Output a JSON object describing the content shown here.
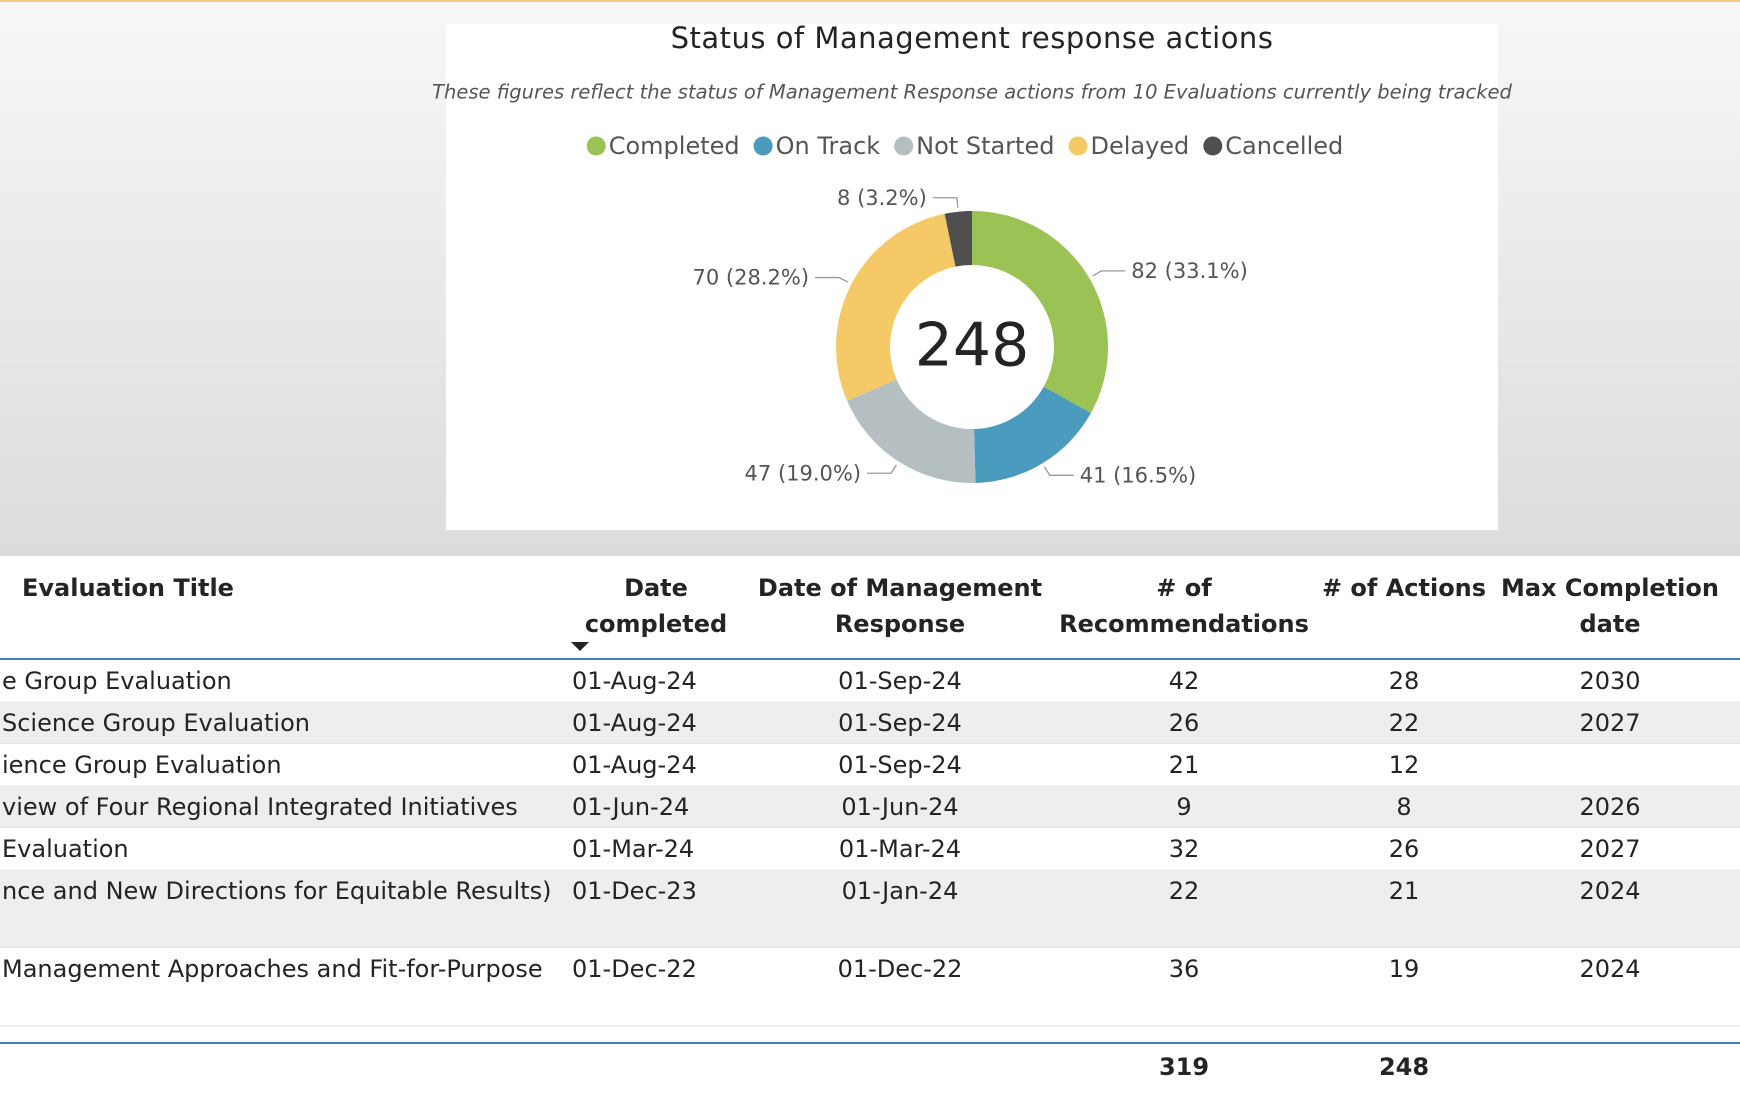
{
  "chart_data": {
    "type": "donut",
    "title": "Status of Management response actions",
    "subtitle": "These figures reflect the status of Management Response actions from 10 Evaluations currently being tracked",
    "categories": [
      "Completed",
      "On Track",
      "Not Started",
      "Delayed",
      "Cancelled"
    ],
    "values": [
      82,
      41,
      47,
      70,
      8
    ],
    "value_labels": [
      "82 (33.1%)",
      "41 (16.5%)",
      "47 (19.0%)",
      "70 (28.2%)",
      "8 (3.2%)"
    ],
    "colors": [
      "#9bc255",
      "#4a9bbe",
      "#b5bfc2",
      "#f5ca66",
      "#4f4f4f"
    ],
    "total": 248
  },
  "table": {
    "headers": [
      [
        "Evaluation Title"
      ],
      [
        "Date",
        "completed"
      ],
      [
        "Date of Management",
        "Response"
      ],
      [
        "# of",
        "Recommendations"
      ],
      [
        "# of Actions"
      ],
      [
        "Max Completion",
        "date"
      ]
    ],
    "rows": [
      [
        "e Group Evaluation",
        "01-Aug-24",
        "01-Sep-24",
        42,
        28,
        2030
      ],
      [
        " Science Group Evaluation",
        "01-Aug-24",
        "01-Sep-24",
        26,
        22,
        2027
      ],
      [
        "ience Group Evaluation",
        "01-Aug-24",
        "01-Sep-24",
        21,
        12,
        null
      ],
      [
        "view of Four Regional Integrated Initiatives",
        "01-Jun-24",
        "01-Jun-24",
        9,
        8,
        2026
      ],
      [
        "Evaluation",
        "01-Mar-24",
        "01-Mar-24",
        32,
        26,
        2027
      ],
      [
        "nce and New Directions for Equitable Results)",
        "01-Dec-23",
        "01-Jan-24",
        22,
        21,
        2024
      ],
      [
        "Management Approaches and Fit-for-Purpose",
        "01-Dec-22",
        "01-Dec-22",
        36,
        19,
        2024
      ]
    ],
    "totals": [
      319,
      248
    ]
  }
}
